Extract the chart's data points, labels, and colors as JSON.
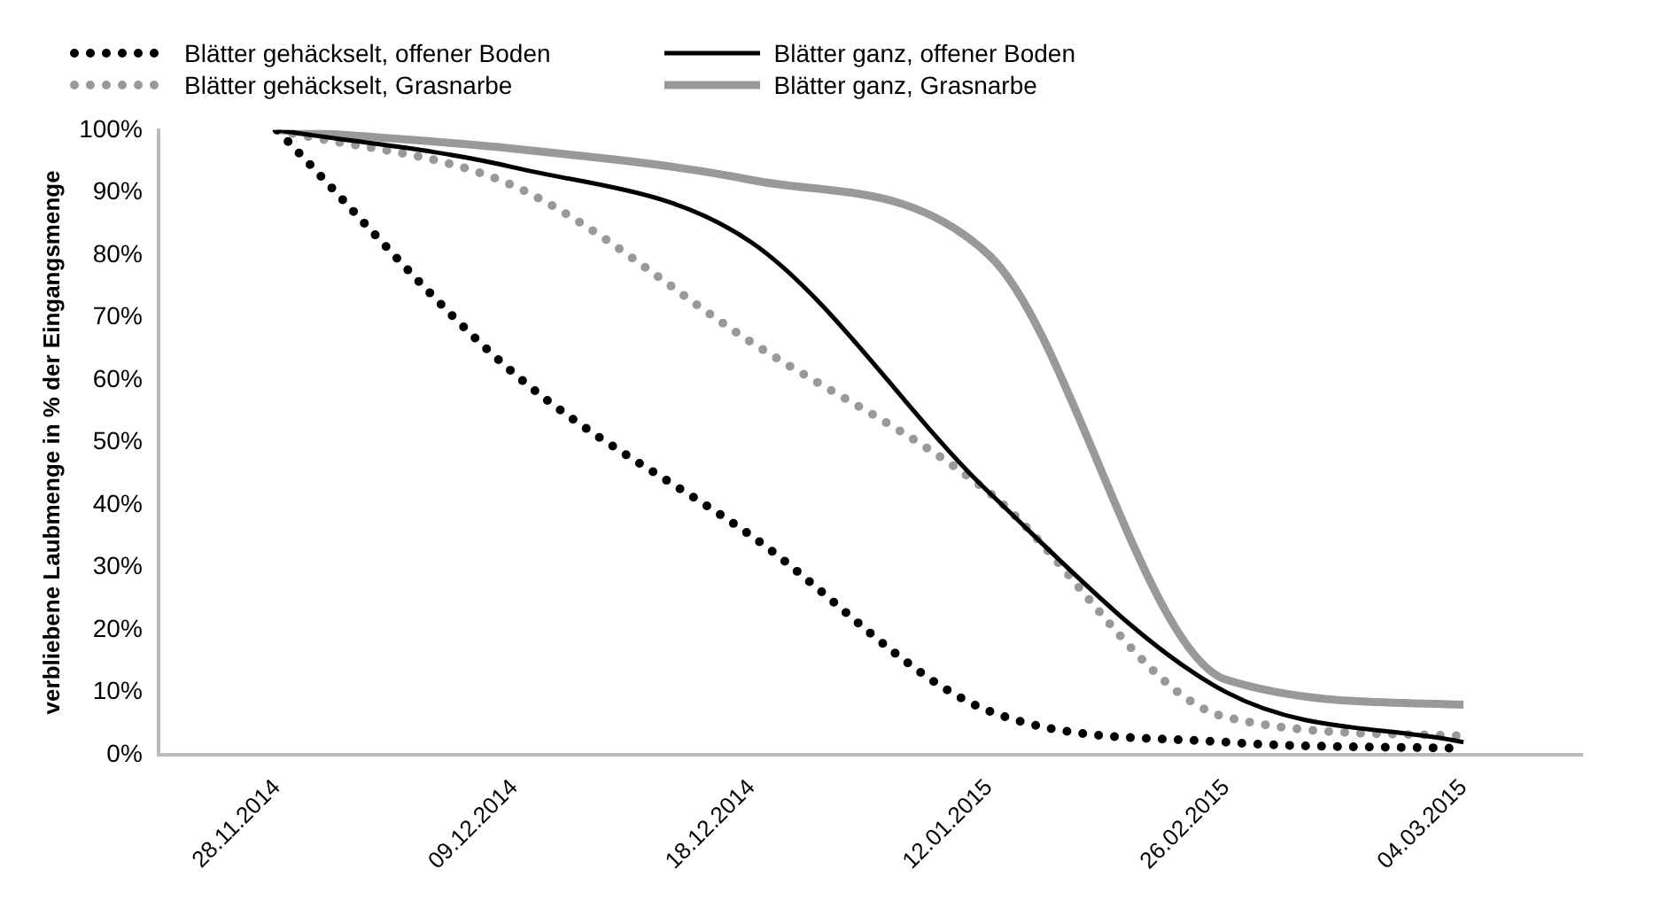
{
  "chart_data": {
    "type": "line",
    "ylabel": "verbliebene Laubmenge in % der Eingangsmenge",
    "categories": [
      "28.11.2014",
      "09.12.2014",
      "18.12.2014",
      "12.01.2015",
      "26.02.2015",
      "04.03.2015"
    ],
    "series": [
      {
        "name": "Blätter gehäckselt, offener Boden",
        "color": "#000000",
        "line_style": "dotted",
        "values": [
          100,
          61,
          35,
          7,
          2,
          1
        ]
      },
      {
        "name": "Blätter ganz, offener Boden",
        "color": "#000000",
        "line_style": "solid",
        "values": [
          100,
          94,
          82,
          42,
          10,
          2
        ]
      },
      {
        "name": "Blätter gehäckselt, Grasnarbe",
        "color": "#999999",
        "line_style": "dotted",
        "values": [
          100,
          91,
          66,
          42,
          6,
          3
        ]
      },
      {
        "name": "Blätter ganz, Grasnarbe",
        "color": "#999999",
        "line_style": "solid",
        "values": [
          100,
          97,
          92,
          80,
          12,
          8
        ]
      }
    ],
    "ylim": [
      0,
      100
    ],
    "yticks": [
      {
        "value": 0,
        "label": "0%"
      },
      {
        "value": 10,
        "label": "10%"
      },
      {
        "value": 20,
        "label": "20%"
      },
      {
        "value": 30,
        "label": "30%"
      },
      {
        "value": 40,
        "label": "40%"
      },
      {
        "value": 50,
        "label": "50%"
      },
      {
        "value": 60,
        "label": "60%"
      },
      {
        "value": 70,
        "label": "70%"
      },
      {
        "value": 80,
        "label": "80%"
      },
      {
        "value": 90,
        "label": "90%"
      },
      {
        "value": 100,
        "label": "100%"
      }
    ],
    "grid": false,
    "legend": "top",
    "marker": "none"
  }
}
